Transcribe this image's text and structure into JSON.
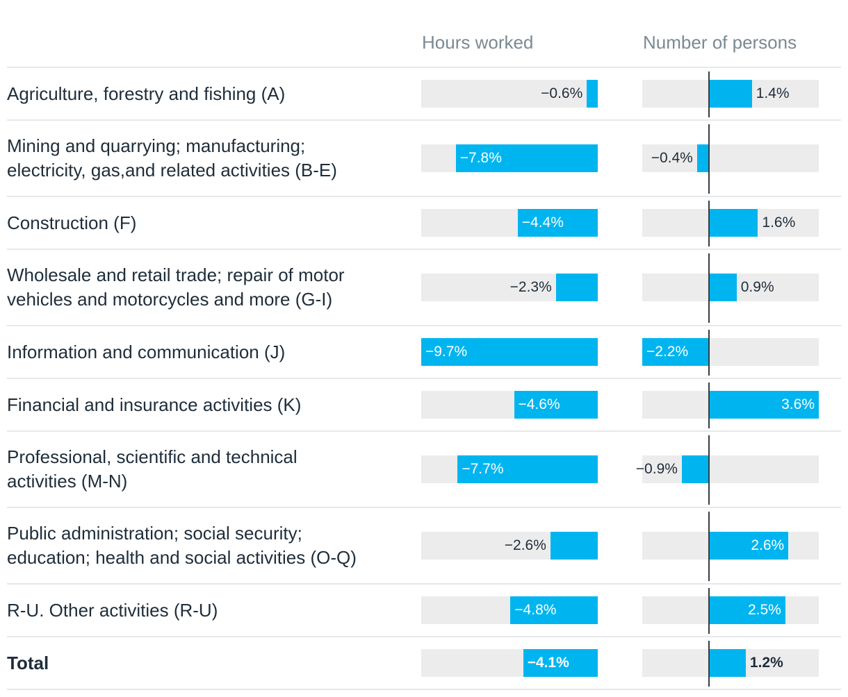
{
  "chart_data": {
    "type": "bar",
    "orientation": "horizontal",
    "columns": [
      {
        "name": "Hours worked",
        "domain": [
          -9.7,
          0
        ]
      },
      {
        "name": "Number of persons",
        "domain": [
          -2.2,
          3.6
        ]
      }
    ],
    "categories": [
      "Agriculture, forestry and fishing (A)",
      "Mining and quarrying; manufacturing;\nelectricity, gas,and related activities (B-E)",
      "Construction (F)",
      "Wholesale and retail trade; repair of motor\nvehicles and motorcycles and more (G-I)",
      "Information and communication (J)",
      "Financial and insurance activities (K)",
      "Professional, scientific and technical\nactivities (M-N)",
      "Public administration; social security;\neducation; health and social activities (O-Q)",
      "R-U. Other activities (R-U)",
      "Total"
    ],
    "series": [
      {
        "name": "Hours worked",
        "values": [
          -0.6,
          -7.8,
          -4.4,
          -2.3,
          -9.7,
          -4.6,
          -7.7,
          -2.6,
          -4.8,
          -4.1
        ],
        "labels": [
          "−0.6%",
          "−7.8%",
          "−4.4%",
          "−2.3%",
          "−9.7%",
          "−4.6%",
          "−7.7%",
          "−2.6%",
          "−4.8%",
          "−4.1%"
        ]
      },
      {
        "name": "Number of persons",
        "values": [
          1.4,
          -0.4,
          1.6,
          0.9,
          -2.2,
          3.6,
          -0.9,
          2.6,
          2.5,
          1.2
        ],
        "labels": [
          "1.4%",
          "−0.4%",
          "1.6%",
          "0.9%",
          "−2.2%",
          "3.6%",
          "−0.9%",
          "2.6%",
          "2.5%",
          "1.2%"
        ]
      }
    ],
    "bold_rows": [
      9
    ],
    "bar_color": "#00b5ef",
    "track_color": "#ececec",
    "text_dark": "#1f2d3a",
    "text_light": "#ffffff"
  }
}
